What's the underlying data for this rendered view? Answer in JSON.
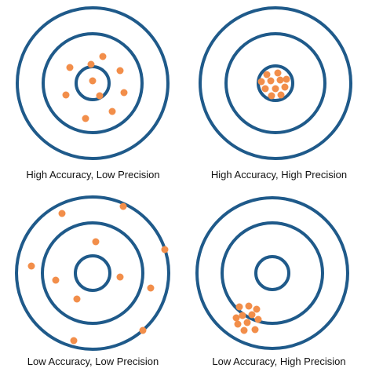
{
  "colors": {
    "ring": "#1f5a8a",
    "dot": "#f28e4a",
    "background": "#ffffff"
  },
  "panels": [
    {
      "caption": "High Accuracy, Low Precision"
    },
    {
      "caption": "High Accuracy, High Precision"
    },
    {
      "caption": "Low Accuracy, Low Precision"
    },
    {
      "caption": "Low Accuracy, High Precision"
    }
  ]
}
